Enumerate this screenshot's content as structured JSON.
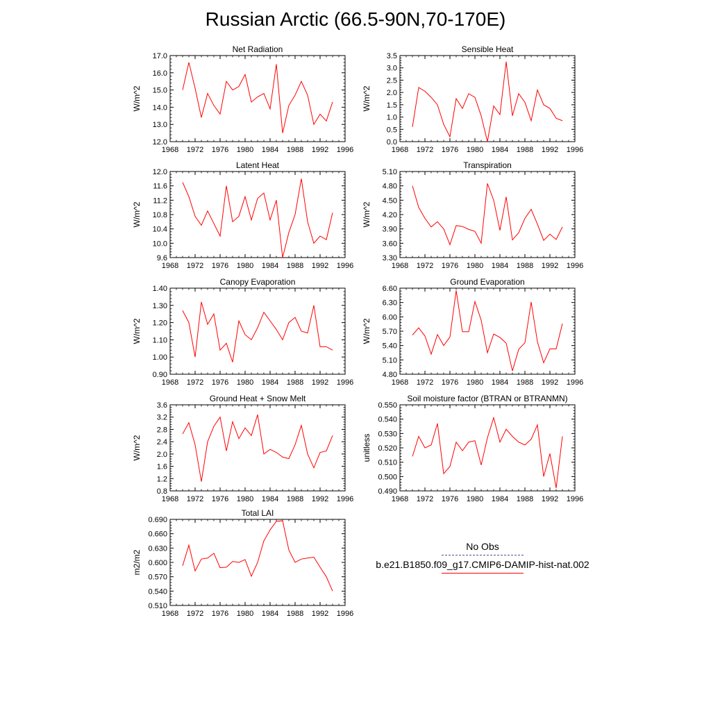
{
  "title": "Russian Arctic (66.5-90N,70-170E)",
  "legend": {
    "obs_label": "No Obs",
    "obs_color": "#5a4a8a",
    "model_label": "b.e21.B1850.f09_g17.CMIP6-DAMIP-hist-nat.002",
    "model_color": "#ff0000"
  },
  "chart_data": [
    {
      "type": "line",
      "title": "Net Radiation",
      "ylabel": "W/m^2",
      "xlim": [
        1968,
        1996
      ],
      "ylim": [
        12.0,
        17.0
      ],
      "xticks": [
        "1968",
        "1972",
        "1976",
        "1980",
        "1984",
        "1988",
        "1992",
        "1996"
      ],
      "yticks": [
        "12.0",
        "13.0",
        "14.0",
        "15.0",
        "16.0",
        "17.0"
      ],
      "series": [
        {
          "color": "#ff0000",
          "x": [
            1970,
            1971,
            1972,
            1973,
            1974,
            1975,
            1976,
            1977,
            1978,
            1979,
            1980,
            1981,
            1982,
            1983,
            1984,
            1985,
            1986,
            1987,
            1988,
            1989,
            1990,
            1991,
            1992,
            1993,
            1994
          ],
          "y": [
            15.0,
            16.6,
            15.1,
            13.4,
            14.8,
            14.1,
            13.6,
            15.5,
            15.0,
            15.2,
            15.9,
            14.3,
            14.6,
            14.8,
            13.9,
            16.5,
            12.5,
            14.1,
            14.7,
            15.5,
            14.7,
            13.0,
            13.6,
            13.2,
            14.3
          ]
        }
      ]
    },
    {
      "type": "line",
      "title": "Sensible Heat",
      "ylabel": "W/m^2",
      "xlim": [
        1968,
        1996
      ],
      "ylim": [
        0.0,
        3.5
      ],
      "xticks": [
        "1968",
        "1972",
        "1976",
        "1980",
        "1984",
        "1988",
        "1992",
        "1996"
      ],
      "yticks": [
        "0.0",
        "0.5",
        "1.0",
        "1.5",
        "2.0",
        "2.5",
        "3.0",
        "3.5"
      ],
      "series": [
        {
          "color": "#ff0000",
          "x": [
            1970,
            1971,
            1972,
            1973,
            1974,
            1975,
            1976,
            1977,
            1978,
            1979,
            1980,
            1981,
            1982,
            1983,
            1984,
            1985,
            1986,
            1987,
            1988,
            1989,
            1990,
            1991,
            1992,
            1993,
            1994
          ],
          "y": [
            0.6,
            2.2,
            2.05,
            1.8,
            1.5,
            0.7,
            0.2,
            1.75,
            1.35,
            1.95,
            1.8,
            1.05,
            0.0,
            1.45,
            1.1,
            3.25,
            1.05,
            1.95,
            1.6,
            0.85,
            2.1,
            1.5,
            1.35,
            0.95,
            0.85
          ]
        }
      ]
    },
    {
      "type": "line",
      "title": "Latent Heat",
      "ylabel": "W/m^2",
      "xlim": [
        1968,
        1996
      ],
      "ylim": [
        9.6,
        12.0
      ],
      "xticks": [
        "1968",
        "1972",
        "1976",
        "1980",
        "1984",
        "1988",
        "1992",
        "1996"
      ],
      "yticks": [
        "9.6",
        "10.0",
        "10.4",
        "10.8",
        "11.2",
        "11.6",
        "12.0"
      ],
      "series": [
        {
          "color": "#ff0000",
          "x": [
            1970,
            1971,
            1972,
            1973,
            1974,
            1975,
            1976,
            1977,
            1978,
            1979,
            1980,
            1981,
            1982,
            1983,
            1984,
            1985,
            1986,
            1987,
            1988,
            1989,
            1990,
            1991,
            1992,
            1993,
            1994
          ],
          "y": [
            11.7,
            11.3,
            10.75,
            10.5,
            10.9,
            10.55,
            10.2,
            11.6,
            10.6,
            10.75,
            11.3,
            10.65,
            11.25,
            11.4,
            10.65,
            11.2,
            9.6,
            10.3,
            10.8,
            11.8,
            10.6,
            10.0,
            10.2,
            10.1,
            10.85
          ]
        }
      ]
    },
    {
      "type": "line",
      "title": "Transpiration",
      "ylabel": "W/m^2",
      "xlim": [
        1968,
        1996
      ],
      "ylim": [
        3.3,
        5.1
      ],
      "xticks": [
        "1968",
        "1972",
        "1976",
        "1980",
        "1984",
        "1988",
        "1992",
        "1996"
      ],
      "yticks": [
        "3.30",
        "3.60",
        "3.90",
        "4.20",
        "4.50",
        "4.80",
        "5.10"
      ],
      "series": [
        {
          "color": "#ff0000",
          "x": [
            1970,
            1971,
            1972,
            1973,
            1974,
            1975,
            1976,
            1977,
            1978,
            1979,
            1980,
            1981,
            1982,
            1983,
            1984,
            1985,
            1986,
            1987,
            1988,
            1989,
            1990,
            1991,
            1992,
            1993,
            1994
          ],
          "y": [
            4.8,
            4.35,
            4.12,
            3.94,
            4.05,
            3.9,
            3.57,
            3.97,
            3.95,
            3.89,
            3.85,
            3.6,
            4.85,
            4.5,
            3.87,
            4.57,
            3.67,
            3.82,
            4.12,
            4.31,
            4.0,
            3.66,
            3.79,
            3.68,
            3.94
          ]
        }
      ]
    },
    {
      "type": "line",
      "title": "Canopy Evaporation",
      "ylabel": "W/m^2",
      "xlim": [
        1968,
        1996
      ],
      "ylim": [
        0.9,
        1.4
      ],
      "xticks": [
        "1968",
        "1972",
        "1976",
        "1980",
        "1984",
        "1988",
        "1992",
        "1996"
      ],
      "yticks": [
        "0.90",
        "1.00",
        "1.10",
        "1.20",
        "1.30",
        "1.40"
      ],
      "series": [
        {
          "color": "#ff0000",
          "x": [
            1970,
            1971,
            1972,
            1973,
            1974,
            1975,
            1976,
            1977,
            1978,
            1979,
            1980,
            1981,
            1982,
            1983,
            1984,
            1985,
            1986,
            1987,
            1988,
            1989,
            1990,
            1991,
            1992,
            1993,
            1994
          ],
          "y": [
            1.27,
            1.2,
            1.0,
            1.32,
            1.19,
            1.25,
            1.04,
            1.08,
            0.97,
            1.21,
            1.13,
            1.1,
            1.17,
            1.26,
            1.21,
            1.16,
            1.1,
            1.2,
            1.23,
            1.15,
            1.14,
            1.3,
            1.06,
            1.06,
            1.04
          ]
        }
      ]
    },
    {
      "type": "line",
      "title": "Ground Evaporation",
      "ylabel": "W/m^2",
      "xlim": [
        1968,
        1996
      ],
      "ylim": [
        4.8,
        6.6
      ],
      "xticks": [
        "1968",
        "1972",
        "1976",
        "1980",
        "1984",
        "1988",
        "1992",
        "1996"
      ],
      "yticks": [
        "4.80",
        "5.10",
        "5.40",
        "5.70",
        "6.00",
        "6.30",
        "6.60"
      ],
      "series": [
        {
          "color": "#ff0000",
          "x": [
            1970,
            1971,
            1972,
            1973,
            1974,
            1975,
            1976,
            1977,
            1978,
            1979,
            1980,
            1981,
            1982,
            1983,
            1984,
            1985,
            1986,
            1987,
            1988,
            1989,
            1990,
            1991,
            1992,
            1993,
            1994
          ],
          "y": [
            5.62,
            5.77,
            5.6,
            5.22,
            5.63,
            5.4,
            5.58,
            6.55,
            5.69,
            5.69,
            6.32,
            5.93,
            5.25,
            5.64,
            5.57,
            5.45,
            4.87,
            5.32,
            5.46,
            6.31,
            5.48,
            5.04,
            5.33,
            5.33,
            5.86
          ]
        }
      ]
    },
    {
      "type": "line",
      "title": "Ground Heat + Snow Melt",
      "ylabel": "W/m^2",
      "xlim": [
        1968,
        1996
      ],
      "ylim": [
        0.8,
        3.6
      ],
      "xticks": [
        "1968",
        "1972",
        "1976",
        "1980",
        "1984",
        "1988",
        "1992",
        "1996"
      ],
      "yticks": [
        "0.8",
        "1.2",
        "1.6",
        "2.0",
        "2.4",
        "2.8",
        "3.2",
        "3.6"
      ],
      "series": [
        {
          "color": "#ff0000",
          "x": [
            1970,
            1971,
            1972,
            1973,
            1974,
            1975,
            1976,
            1977,
            1978,
            1979,
            1980,
            1981,
            1982,
            1983,
            1984,
            1985,
            1986,
            1987,
            1988,
            1989,
            1990,
            1991,
            1992,
            1993,
            1994
          ],
          "y": [
            2.65,
            3.02,
            2.3,
            1.1,
            2.4,
            2.9,
            3.2,
            2.1,
            3.05,
            2.5,
            2.85,
            2.6,
            3.28,
            2.0,
            2.15,
            2.05,
            1.9,
            1.85,
            2.3,
            2.93,
            2.0,
            1.55,
            2.05,
            2.1,
            2.6
          ]
        }
      ]
    },
    {
      "type": "line",
      "title": "Soil moisture factor (BTRAN or BTRANMN)",
      "ylabel": "unitless",
      "xlim": [
        1968,
        1996
      ],
      "ylim": [
        0.49,
        0.55
      ],
      "xticks": [
        "1968",
        "1972",
        "1976",
        "1980",
        "1984",
        "1988",
        "1992",
        "1996"
      ],
      "yticks": [
        "0.490",
        "0.500",
        "0.510",
        "0.520",
        "0.530",
        "0.540",
        "0.550"
      ],
      "series": [
        {
          "color": "#ff0000",
          "x": [
            1970,
            1971,
            1972,
            1973,
            1974,
            1975,
            1976,
            1977,
            1978,
            1979,
            1980,
            1981,
            1982,
            1983,
            1984,
            1985,
            1986,
            1987,
            1988,
            1989,
            1990,
            1991,
            1992,
            1993,
            1994
          ],
          "y": [
            0.514,
            0.528,
            0.52,
            0.522,
            0.537,
            0.502,
            0.507,
            0.524,
            0.518,
            0.524,
            0.525,
            0.508,
            0.527,
            0.541,
            0.524,
            0.533,
            0.528,
            0.524,
            0.522,
            0.526,
            0.536,
            0.5,
            0.516,
            0.492,
            0.528
          ]
        }
      ]
    },
    {
      "type": "line",
      "title": "Total LAI",
      "ylabel": "m2/m2",
      "xlim": [
        1968,
        1996
      ],
      "ylim": [
        0.51,
        0.69
      ],
      "xticks": [
        "1968",
        "1972",
        "1976",
        "1980",
        "1984",
        "1988",
        "1992",
        "1996"
      ],
      "yticks": [
        "0.510",
        "0.540",
        "0.570",
        "0.600",
        "0.630",
        "0.660",
        "0.690"
      ],
      "series": [
        {
          "color": "#ff0000",
          "x": [
            1970,
            1971,
            1972,
            1973,
            1974,
            1975,
            1976,
            1977,
            1978,
            1979,
            1980,
            1981,
            1982,
            1983,
            1984,
            1985,
            1986,
            1987,
            1988,
            1989,
            1990,
            1991,
            1992,
            1993,
            1994
          ],
          "y": [
            0.593,
            0.636,
            0.582,
            0.607,
            0.609,
            0.619,
            0.589,
            0.59,
            0.602,
            0.6,
            0.606,
            0.571,
            0.6,
            0.645,
            0.668,
            0.686,
            0.687,
            0.626,
            0.6,
            0.607,
            0.609,
            0.611,
            0.59,
            0.57,
            0.54
          ]
        }
      ]
    }
  ]
}
